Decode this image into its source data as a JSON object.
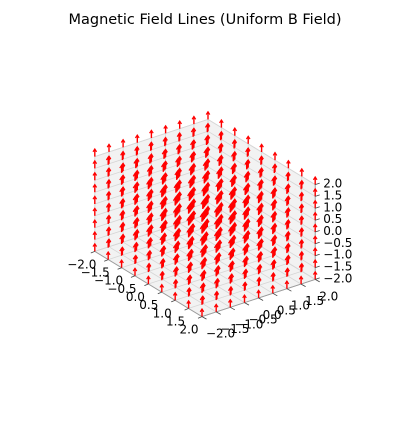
{
  "chart_data": {
    "type": "quiver3d",
    "title": "Magnetic Field Lines (Uniform B Field)",
    "xlabel": "",
    "ylabel": "",
    "zlabel": "",
    "xlim": [
      -2.0,
      2.0
    ],
    "ylim": [
      -2.0,
      2.0
    ],
    "zlim": [
      -2.0,
      2.0
    ],
    "grid_values": [
      -2.0,
      -1.5,
      -1.0,
      -0.5,
      0.0,
      0.5,
      1.0,
      1.5,
      2.0
    ],
    "vector": [
      0,
      0,
      1
    ],
    "arrow_color": "#ff0000",
    "grid": true,
    "x_ticks": [
      "−2.0",
      "−1.5",
      "−1.0",
      "−0.5",
      "0.0",
      "0.5",
      "1.0",
      "1.5",
      "2.0"
    ],
    "y_ticks": [
      "−2.0",
      "−1.5",
      "−1.0",
      "−0.5",
      "0.0",
      "0.5",
      "1.0",
      "1.5",
      "2.0"
    ],
    "z_ticks": [
      "−2.0",
      "−1.5",
      "−1.0",
      "−0.5",
      "0.0",
      "0.5",
      "1.0",
      "1.5",
      "2.0"
    ]
  }
}
